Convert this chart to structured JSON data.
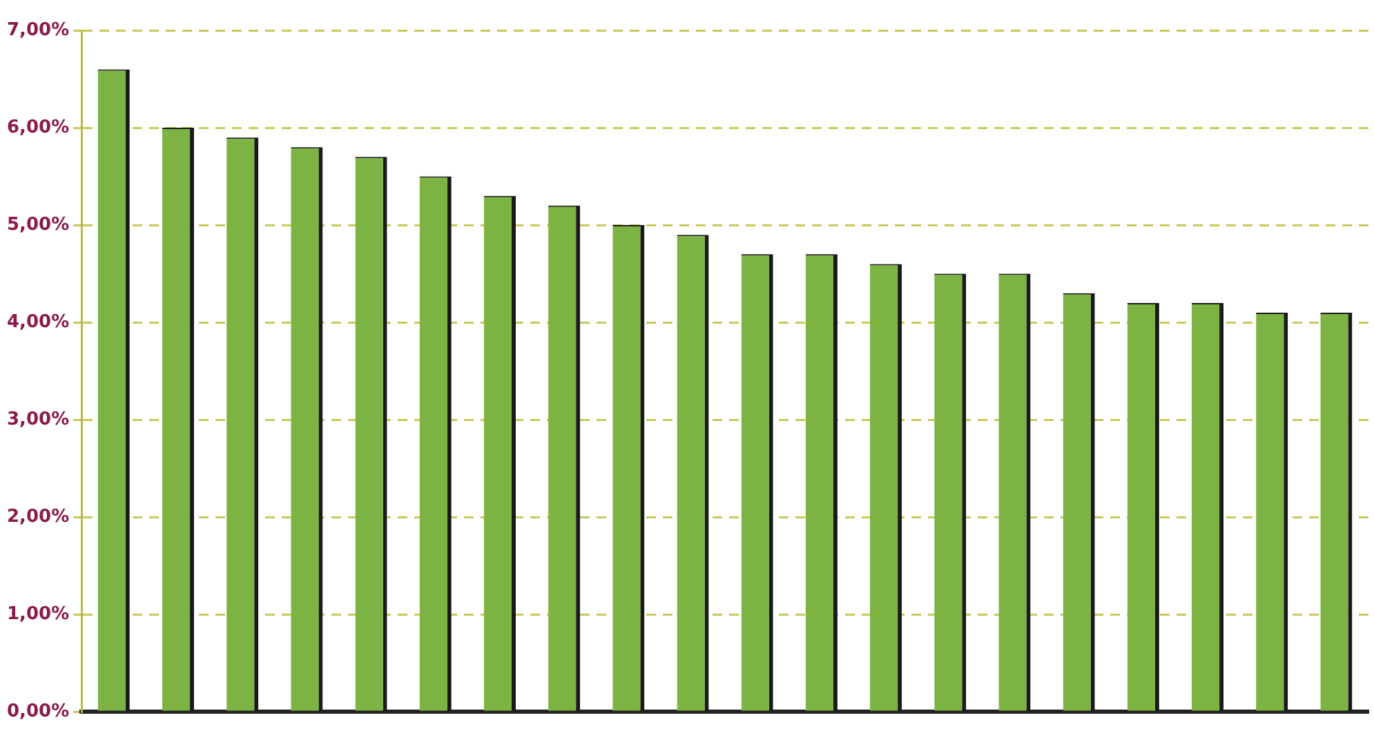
{
  "chart_data": {
    "type": "bar",
    "categories": [
      null,
      null,
      null,
      null,
      null,
      null,
      null,
      null,
      null,
      null,
      null,
      null,
      null,
      null,
      null,
      null,
      null,
      null,
      null,
      null
    ],
    "values": [
      6.6,
      6.0,
      5.9,
      5.8,
      5.7,
      5.5,
      5.3,
      5.2,
      5.0,
      4.9,
      4.7,
      4.7,
      4.6,
      4.5,
      4.5,
      4.3,
      4.2,
      4.2,
      4.1,
      4.1
    ],
    "color": "#7cb342",
    "ylim": [
      0,
      7
    ],
    "yticks": [
      {
        "value": 0,
        "label": "0,00%"
      },
      {
        "value": 1,
        "label": "1,00%"
      },
      {
        "value": 2,
        "label": "2,00%"
      },
      {
        "value": 3,
        "label": "3,00%"
      },
      {
        "value": 4,
        "label": "4,00%"
      },
      {
        "value": 5,
        "label": "5,00%"
      },
      {
        "value": 6,
        "label": "6,00%"
      },
      {
        "value": 7,
        "label": "7,00%"
      }
    ],
    "grid": "y",
    "legend": false
  }
}
